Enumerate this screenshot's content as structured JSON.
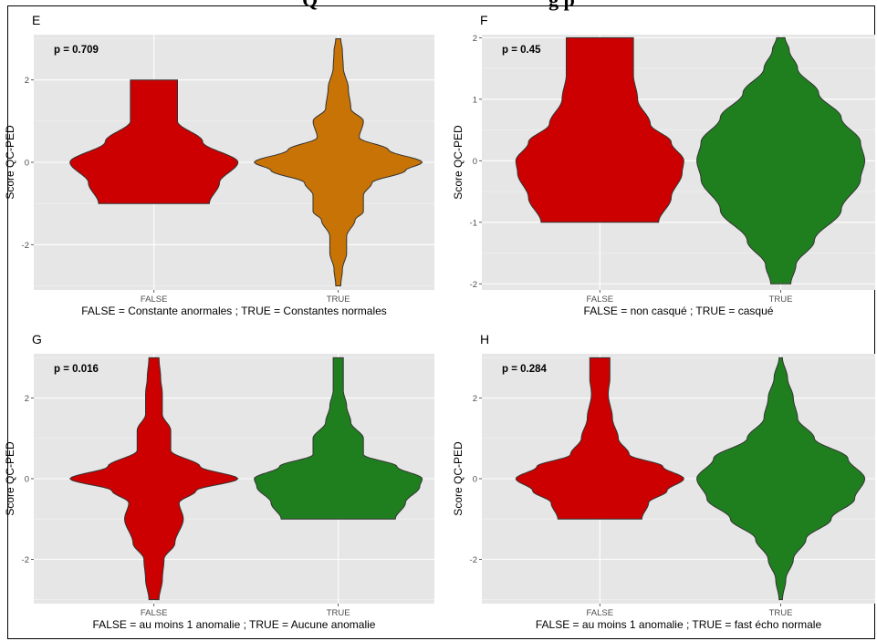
{
  "title": "Q                                              g p",
  "chart_data": [
    {
      "type": "violin",
      "panel_label": "E",
      "annotation": "p =  0.709",
      "ylabel": "Score QC-PED",
      "xlabel": "FALSE = Constante anormales ; TRUE = Constantes normales",
      "categories": [
        "FALSE",
        "TRUE"
      ],
      "y_ticks": [
        -2,
        0,
        2
      ],
      "ylim": [
        -3.1,
        3.1
      ],
      "grid": true,
      "colors": [
        "#CC0000",
        "#C87305"
      ],
      "violins": [
        {
          "name": "FALSE",
          "color": "#CC0000",
          "profile": [
            [
              -1,
              0.66
            ],
            [
              -0.5,
              0.78
            ],
            [
              0,
              1.0
            ],
            [
              0.5,
              0.58
            ],
            [
              1,
              0.28
            ],
            [
              1.5,
              0.28
            ],
            [
              2,
              0.28
            ]
          ]
        },
        {
          "name": "TRUE",
          "color": "#C87305",
          "profile": [
            [
              -3,
              0.03
            ],
            [
              -2.6,
              0.05
            ],
            [
              -2.2,
              0.1
            ],
            [
              -1.8,
              0.1
            ],
            [
              -1.4,
              0.2
            ],
            [
              -1.2,
              0.3
            ],
            [
              -0.8,
              0.3
            ],
            [
              -0.5,
              0.4
            ],
            [
              -0.2,
              0.8
            ],
            [
              0,
              1.0
            ],
            [
              0.3,
              0.6
            ],
            [
              0.6,
              0.25
            ],
            [
              1.0,
              0.3
            ],
            [
              1.3,
              0.15
            ],
            [
              1.8,
              0.12
            ],
            [
              2.3,
              0.06
            ],
            [
              2.7,
              0.05
            ],
            [
              3,
              0.03
            ]
          ]
        }
      ]
    },
    {
      "type": "violin",
      "panel_label": "F",
      "annotation": "p =  0.45",
      "ylabel": "Score QC-PED",
      "xlabel": "FALSE = non casqué ; TRUE = casqué",
      "categories": [
        "FALSE",
        "TRUE"
      ],
      "y_ticks": [
        -2,
        -1,
        0,
        1,
        2
      ],
      "ylim": [
        -2.1,
        2.05
      ],
      "grid": true,
      "colors": [
        "#CC0000",
        "#1F7F1F"
      ],
      "violins": [
        {
          "name": "FALSE",
          "color": "#CC0000",
          "profile": [
            [
              -1,
              0.7
            ],
            [
              -0.6,
              0.85
            ],
            [
              -0.2,
              0.98
            ],
            [
              0,
              1.0
            ],
            [
              0.3,
              0.85
            ],
            [
              0.6,
              0.6
            ],
            [
              1,
              0.45
            ],
            [
              1.4,
              0.4
            ],
            [
              1.8,
              0.4
            ],
            [
              2,
              0.4
            ]
          ]
        },
        {
          "name": "TRUE",
          "color": "#1F7F1F",
          "profile": [
            [
              -2,
              0.12
            ],
            [
              -1.7,
              0.18
            ],
            [
              -1.3,
              0.4
            ],
            [
              -0.8,
              0.72
            ],
            [
              -0.3,
              0.95
            ],
            [
              0,
              1.0
            ],
            [
              0.3,
              0.95
            ],
            [
              0.7,
              0.72
            ],
            [
              1.1,
              0.45
            ],
            [
              1.5,
              0.2
            ],
            [
              1.8,
              0.1
            ],
            [
              2,
              0.05
            ]
          ]
        }
      ]
    },
    {
      "type": "violin",
      "panel_label": "G",
      "annotation": "p =  0.016",
      "ylabel": "Score QC-PED",
      "xlabel": "FALSE = au moins 1 anomalie ; TRUE = Aucune anomalie",
      "categories": [
        "FALSE",
        "TRUE"
      ],
      "y_ticks": [
        -2,
        0,
        2
      ],
      "ylim": [
        -3.1,
        3.1
      ],
      "grid": true,
      "colors": [
        "#CC0000",
        "#1F7F1F"
      ],
      "violins": [
        {
          "name": "FALSE",
          "color": "#CC0000",
          "profile": [
            [
              -3,
              0.06
            ],
            [
              -2.5,
              0.1
            ],
            [
              -2.0,
              0.12
            ],
            [
              -1.6,
              0.25
            ],
            [
              -1.0,
              0.35
            ],
            [
              -0.6,
              0.3
            ],
            [
              -0.3,
              0.5
            ],
            [
              0,
              1.0
            ],
            [
              0.3,
              0.55
            ],
            [
              0.7,
              0.2
            ],
            [
              1.2,
              0.2
            ],
            [
              1.6,
              0.1
            ],
            [
              2.1,
              0.1
            ],
            [
              2.5,
              0.08
            ],
            [
              3,
              0.06
            ]
          ]
        },
        {
          "name": "TRUE",
          "color": "#1F7F1F",
          "profile": [
            [
              -1,
              0.68
            ],
            [
              -0.6,
              0.8
            ],
            [
              -0.2,
              0.97
            ],
            [
              0,
              1.0
            ],
            [
              0.3,
              0.7
            ],
            [
              0.6,
              0.3
            ],
            [
              1.0,
              0.3
            ],
            [
              1.4,
              0.15
            ],
            [
              1.8,
              0.1
            ],
            [
              2.2,
              0.06
            ],
            [
              2.6,
              0.06
            ],
            [
              3,
              0.06
            ]
          ]
        }
      ]
    },
    {
      "type": "violin",
      "panel_label": "H",
      "annotation": "p =  0.284",
      "ylabel": "Score QC-PED",
      "xlabel": "FALSE = au moins 1 anomalie ; TRUE = fast écho normale",
      "categories": [
        "FALSE",
        "TRUE"
      ],
      "y_ticks": [
        -2,
        0,
        2
      ],
      "ylim": [
        -3.1,
        3.1
      ],
      "grid": true,
      "colors": [
        "#CC0000",
        "#1F7F1F"
      ],
      "violins": [
        {
          "name": "FALSE",
          "color": "#CC0000",
          "profile": [
            [
              -1,
              0.5
            ],
            [
              -0.6,
              0.58
            ],
            [
              -0.3,
              0.8
            ],
            [
              0,
              1.0
            ],
            [
              0.3,
              0.75
            ],
            [
              0.6,
              0.35
            ],
            [
              1.0,
              0.22
            ],
            [
              1.5,
              0.15
            ],
            [
              2.1,
              0.1
            ],
            [
              2.5,
              0.12
            ],
            [
              3,
              0.12
            ]
          ]
        },
        {
          "name": "TRUE",
          "color": "#1F7F1F",
          "profile": [
            [
              -3,
              0.02
            ],
            [
              -2.5,
              0.06
            ],
            [
              -2.0,
              0.15
            ],
            [
              -1.5,
              0.3
            ],
            [
              -1.0,
              0.6
            ],
            [
              -0.5,
              0.88
            ],
            [
              0,
              1.0
            ],
            [
              0.5,
              0.8
            ],
            [
              1.0,
              0.4
            ],
            [
              1.5,
              0.2
            ],
            [
              2.0,
              0.15
            ],
            [
              2.5,
              0.08
            ],
            [
              3,
              0.02
            ]
          ]
        }
      ]
    }
  ]
}
